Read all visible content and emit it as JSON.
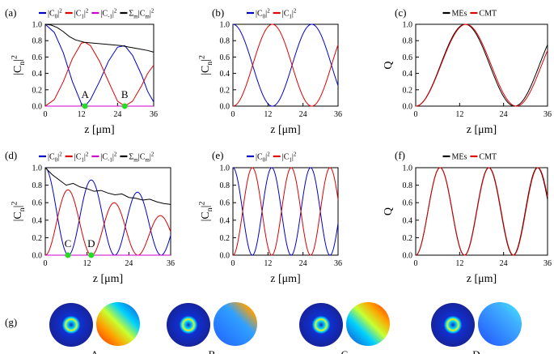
{
  "chart_data": [
    {
      "panel": "(a)",
      "type": "line",
      "xlabel": "z [μm]",
      "ylabel": "|C_n|^2",
      "xlim": [
        0,
        36
      ],
      "ylim": [
        0,
        1.0
      ],
      "xticks": [
        "0",
        "12",
        "24",
        "36"
      ],
      "yticks": [
        "0.0",
        "0.2",
        "0.4",
        "0.6",
        "0.8",
        "1.0"
      ],
      "legend": [
        "|C_0|^2",
        "|C_1|^2",
        "|C_-1|^2",
        "Σ_m|C_m|^2"
      ],
      "annotations": [
        {
          "text": "A",
          "x": 13.2,
          "y": 0
        },
        {
          "text": "B",
          "x": 26.4,
          "y": 0
        }
      ],
      "series": [
        {
          "name": "|C_0|^2",
          "color": "#0000cc",
          "x": [
            0,
            3,
            6,
            9,
            12,
            13.2,
            15,
            18,
            21,
            24,
            26.4,
            29,
            32,
            34,
            36
          ],
          "y": [
            1.0,
            0.9,
            0.65,
            0.3,
            0.03,
            0.0,
            0.08,
            0.3,
            0.55,
            0.72,
            0.74,
            0.62,
            0.38,
            0.18,
            0.05
          ]
        },
        {
          "name": "|C_1|^2",
          "color": "#dd0000",
          "x": [
            0,
            3,
            6,
            9,
            12,
            13.2,
            15,
            18,
            21,
            24,
            26.4,
            29,
            32,
            34,
            36
          ],
          "y": [
            0.0,
            0.08,
            0.3,
            0.58,
            0.77,
            0.78,
            0.74,
            0.55,
            0.3,
            0.06,
            0.0,
            0.06,
            0.25,
            0.4,
            0.5
          ]
        },
        {
          "name": "|C_-1|^2",
          "color": "#cc00cc",
          "x": [
            0,
            36
          ],
          "y": [
            0.0,
            0.0
          ]
        },
        {
          "name": "Σ_m|C_m|^2",
          "color": "#000000",
          "x": [
            0,
            2,
            4,
            6,
            8,
            10,
            13,
            16,
            19,
            22,
            25,
            28,
            31,
            34,
            36
          ],
          "y": [
            1.0,
            0.99,
            0.96,
            0.91,
            0.85,
            0.81,
            0.78,
            0.77,
            0.76,
            0.75,
            0.74,
            0.72,
            0.7,
            0.68,
            0.66
          ]
        }
      ]
    },
    {
      "panel": "(b)",
      "type": "line",
      "xlabel": "z [μm]",
      "ylabel": "|C_n|^2",
      "xlim": [
        0,
        36
      ],
      "ylim": [
        0,
        1.0
      ],
      "xticks": [
        "0",
        "12",
        "24",
        "36"
      ],
      "yticks": [
        "0.0",
        "0.2",
        "0.4",
        "0.6",
        "0.8",
        "1.0"
      ],
      "legend": [
        "|C_0|^2",
        "|C_1|^2"
      ],
      "series": [
        {
          "name": "|C_0|^2",
          "color": "#0000cc",
          "shape": "cos2",
          "period": 27.0,
          "phase": 0
        },
        {
          "name": "|C_1|^2",
          "color": "#dd0000",
          "shape": "sin2",
          "period": 27.0,
          "phase": 0
        }
      ]
    },
    {
      "panel": "(c)",
      "type": "line",
      "xlabel": "z [μm]",
      "ylabel": "Q",
      "xlim": [
        0,
        36
      ],
      "ylim": [
        0,
        1.0
      ],
      "xticks": [
        "0",
        "12",
        "24",
        "36"
      ],
      "yticks": [
        "0.0",
        "0.2",
        "0.4",
        "0.6",
        "0.8",
        "1.0"
      ],
      "legend": [
        "MEs",
        "CMT"
      ],
      "series": [
        {
          "name": "MEs",
          "color": "#000000",
          "shape": "sin2",
          "period": 27.0,
          "phase": 0
        },
        {
          "name": "CMT",
          "color": "#dd0000",
          "shape": "sin2",
          "period": 27.5,
          "phase": 0
        }
      ]
    },
    {
      "panel": "(d)",
      "type": "line",
      "xlabel": "z [μm]",
      "ylabel": "|C_n|^2",
      "xlim": [
        0,
        36
      ],
      "ylim": [
        0,
        1.0
      ],
      "xticks": [
        "0",
        "12",
        "24",
        "36"
      ],
      "yticks": [
        "0.0",
        "0.2",
        "0.4",
        "0.6",
        "0.8",
        "1.0"
      ],
      "legend": [
        "|C_0|^2",
        "|C_1|^2",
        "|C_-1|^2",
        "Σ_m|C_m|^2"
      ],
      "annotations": [
        {
          "text": "C",
          "x": 6.5,
          "y": 0
        },
        {
          "text": "D",
          "x": 13.2,
          "y": 0
        }
      ],
      "series": [
        {
          "name": "|C_0|^2",
          "color": "#0000cc",
          "shape": "cos2d",
          "period": 13.3,
          "amp_start": 1.0,
          "amp_end": 0.62
        },
        {
          "name": "|C_1|^2",
          "color": "#dd0000",
          "shape": "sin2d",
          "period": 13.3,
          "amp_start": 0.82,
          "amp_end": 0.42
        },
        {
          "name": "|C_-1|^2",
          "color": "#cc00cc",
          "x": [
            0,
            36
          ],
          "y": [
            0.0,
            0.0
          ]
        },
        {
          "name": "Σ_m|C_m|^2",
          "color": "#000000",
          "x": [
            0,
            2,
            4,
            6,
            8,
            10,
            12,
            14,
            16,
            18,
            20,
            22,
            24,
            26,
            28,
            30,
            32,
            34,
            36
          ],
          "y": [
            1.0,
            0.92,
            0.86,
            0.8,
            0.82,
            0.78,
            0.76,
            0.73,
            0.74,
            0.71,
            0.69,
            0.7,
            0.66,
            0.65,
            0.63,
            0.64,
            0.61,
            0.59,
            0.58
          ]
        }
      ]
    },
    {
      "panel": "(e)",
      "type": "line",
      "xlabel": "z [μm]",
      "ylabel": "|C_n|^2",
      "xlim": [
        0,
        36
      ],
      "ylim": [
        0,
        1.0
      ],
      "xticks": [
        "0",
        "12",
        "24",
        "36"
      ],
      "yticks": [
        "0.0",
        "0.2",
        "0.4",
        "0.6",
        "0.8",
        "1.0"
      ],
      "legend": [
        "|C_0|^2",
        "|C_1|^2"
      ],
      "series": [
        {
          "name": "|C_0|^2",
          "color": "#0000cc",
          "shape": "cos2",
          "period": 13.3,
          "phase": 0
        },
        {
          "name": "|C_1|^2",
          "color": "#dd0000",
          "shape": "sin2",
          "period": 13.3,
          "phase": 0
        }
      ]
    },
    {
      "panel": "(f)",
      "type": "line",
      "xlabel": "z [μm]",
      "ylabel": "Q",
      "xlim": [
        0,
        36
      ],
      "ylim": [
        0,
        1.0
      ],
      "xticks": [
        "0",
        "12",
        "24",
        "36"
      ],
      "yticks": [
        "0.0",
        "0.2",
        "0.4",
        "0.6",
        "0.8",
        "1.0"
      ],
      "legend": [
        "MEs",
        "CMT"
      ],
      "series": [
        {
          "name": "MEs",
          "color": "#000000",
          "shape": "sin2",
          "period": 13.3,
          "phase": 0
        },
        {
          "name": "CMT",
          "color": "#dd0000",
          "shape": "sin2",
          "period": 13.35,
          "phase": 0
        }
      ]
    }
  ],
  "panel_g": {
    "label": "(g)",
    "items": [
      "A",
      "B",
      "C",
      "D"
    ]
  },
  "colors": {
    "blue": "#0000cc",
    "red": "#dd0000",
    "magenta": "#cc00cc",
    "green": "#22dd22"
  }
}
